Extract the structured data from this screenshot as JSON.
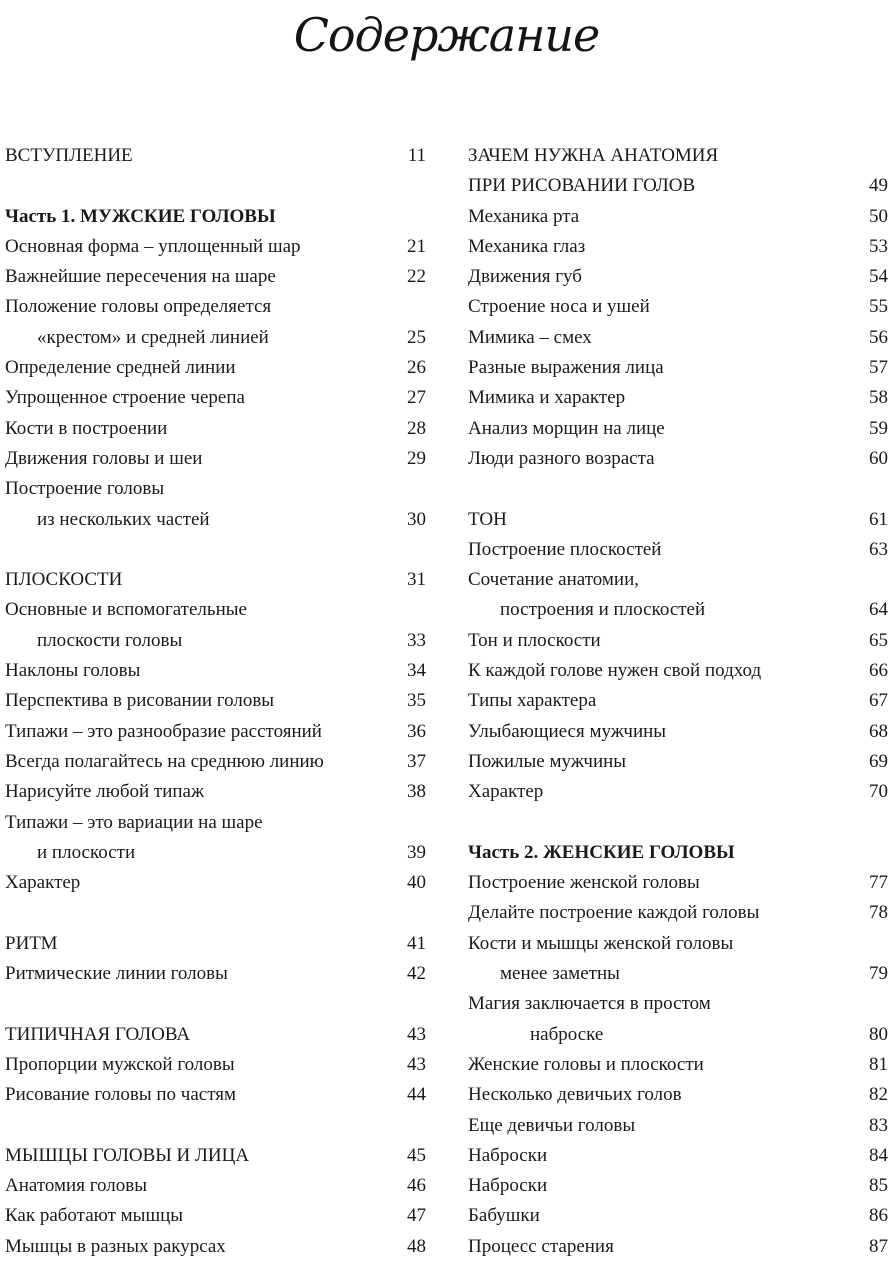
{
  "title": "Содержание",
  "columns": {
    "left": [
      {
        "text": "ВСТУПЛЕНИЕ",
        "page": "11"
      },
      {},
      {
        "text": "Часть 1. МУЖСКИЕ ГОЛОВЫ",
        "bold": true
      },
      {
        "text": "Основная форма – уплощенный шар",
        "page": "21"
      },
      {
        "text": "Важнейшие пересечения на шаре",
        "page": "22"
      },
      {
        "text": "Положение головы определяется"
      },
      {
        "text": "«крестом» и средней линией",
        "page": "25",
        "indent": 1
      },
      {
        "text": "Определение средней линии",
        "page": "26"
      },
      {
        "text": "Упрощенное строение черепа",
        "page": "27"
      },
      {
        "text": "Кости в построении",
        "page": "28"
      },
      {
        "text": "Движения головы и шеи",
        "page": "29"
      },
      {
        "text": "Построение головы"
      },
      {
        "text": "из нескольких частей",
        "page": "30",
        "indent": 1
      },
      {},
      {
        "text": "ПЛОСКОСТИ",
        "page": "31"
      },
      {
        "text": "Основные и вспомогательные"
      },
      {
        "text": "плоскости головы",
        "page": "33",
        "indent": 1
      },
      {
        "text": "Наклоны головы",
        "page": "34"
      },
      {
        "text": "Перспектива в рисовании головы",
        "page": "35"
      },
      {
        "text": "Типажи – это разнообразие расстояний",
        "page": "36"
      },
      {
        "text": "Всегда полагайтесь на среднюю линию",
        "page": "37"
      },
      {
        "text": "Нарисуйте любой типаж",
        "page": "38"
      },
      {
        "text": "Типажи – это вариации на шаре"
      },
      {
        "text": "и плоскости",
        "page": "39",
        "indent": 1
      },
      {
        "text": "Характер",
        "page": "40"
      },
      {},
      {
        "text": "РИТМ",
        "page": "41"
      },
      {
        "text": "Ритмические линии головы",
        "page": "42"
      },
      {},
      {
        "text": "ТИПИЧНАЯ ГОЛОВА",
        "page": "43"
      },
      {
        "text": "Пропорции мужской головы",
        "page": "43"
      },
      {
        "text": "Рисование головы по частям",
        "page": "44"
      },
      {},
      {
        "text": "МЫШЦЫ ГОЛОВЫ И ЛИЦА",
        "page": "45"
      },
      {
        "text": "Анатомия головы",
        "page": "46"
      },
      {
        "text": "Как работают мышцы",
        "page": "47"
      },
      {
        "text": "Мышцы в разных ракурсах",
        "page": "48"
      }
    ],
    "right": [
      {
        "text": "ЗАЧЕМ НУЖНА АНАТОМИЯ"
      },
      {
        "text": "ПРИ РИСОВАНИИ ГОЛОВ",
        "page": "49"
      },
      {
        "text": "Механика рта",
        "page": "50"
      },
      {
        "text": "Механика глаз",
        "page": "53"
      },
      {
        "text": "Движения губ",
        "page": "54"
      },
      {
        "text": "Строение носа и ушей",
        "page": "55"
      },
      {
        "text": "Мимика – смех",
        "page": "56"
      },
      {
        "text": "Разные выражения лица",
        "page": "57"
      },
      {
        "text": "Мимика и характер",
        "page": "58"
      },
      {
        "text": "Анализ морщин на лице",
        "page": "59"
      },
      {
        "text": "Люди разного возраста",
        "page": "60"
      },
      {},
      {
        "text": "ТОН",
        "page": "61"
      },
      {
        "text": "Построение плоскостей",
        "page": "63"
      },
      {
        "text": "Сочетание анатомии,"
      },
      {
        "text": "построения и плоскостей",
        "page": "64",
        "indent": 1
      },
      {
        "text": "Тон и плоскости",
        "page": "65"
      },
      {
        "text": "К каждой голове нужен свой подход",
        "page": "66"
      },
      {
        "text": "Типы характера",
        "page": "67"
      },
      {
        "text": "Улыбающиеся мужчины",
        "page": "68"
      },
      {
        "text": "Пожилые мужчины",
        "page": "69"
      },
      {
        "text": "Характер",
        "page": "70"
      },
      {},
      {
        "text": "Часть 2. ЖЕНСКИЕ ГОЛОВЫ",
        "bold": true
      },
      {
        "text": "Построение женской головы",
        "page": "77"
      },
      {
        "text": "Делайте построение каждой головы",
        "page": "78"
      },
      {
        "text": "Кости и мышцы женской головы"
      },
      {
        "text": "менее заметны",
        "page": "79",
        "indent": 1
      },
      {
        "text": "Магия заключается в простом"
      },
      {
        "text": "наброске",
        "page": "80",
        "indent": 2
      },
      {
        "text": "Женские головы и плоскости",
        "page": "81"
      },
      {
        "text": "Несколько девичьих голов",
        "page": "82"
      },
      {
        "text": "Еще девичьи головы",
        "page": "83"
      },
      {
        "text": "Наброски",
        "page": "84"
      },
      {
        "text": "Наброски",
        "page": "85"
      },
      {
        "text": "Бабушки",
        "page": "86"
      },
      {
        "text": "Процесс старения",
        "page": "87"
      }
    ]
  }
}
